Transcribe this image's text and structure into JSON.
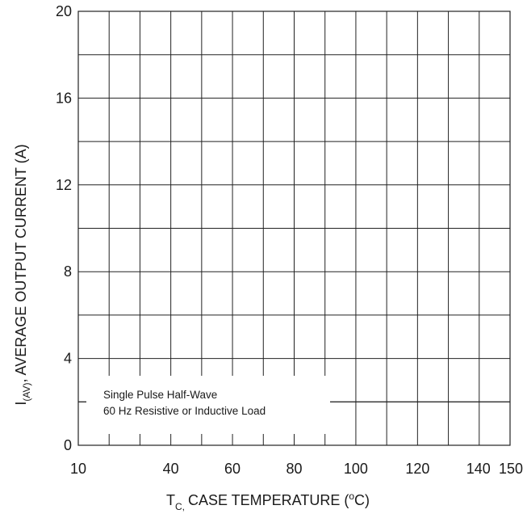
{
  "chart_data": {
    "type": "line",
    "title": "",
    "xlabel": {
      "prefix": "T",
      "subscript": "C,",
      "main": "CASE TEMPERATURE (",
      "superscript": "o",
      "suffix": "C)"
    },
    "ylabel": {
      "prefix": "I",
      "subscript": "(AV)",
      "main": ", AVERAGE OUTPUT CURRENT (A)"
    },
    "xlim": [
      10,
      150
    ],
    "ylim": [
      0,
      20
    ],
    "x_ticks": [
      {
        "value": 10,
        "label": "10"
      },
      {
        "value": 40,
        "label": "40"
      },
      {
        "value": 60,
        "label": "60"
      },
      {
        "value": 80,
        "label": "80"
      },
      {
        "value": 100,
        "label": "100"
      },
      {
        "value": 120,
        "label": "120"
      },
      {
        "value": 140,
        "label": "140"
      },
      {
        "value": 150,
        "label": "150"
      }
    ],
    "y_ticks": [
      {
        "value": 0,
        "label": "0"
      },
      {
        "value": 4,
        "label": "4"
      },
      {
        "value": 8,
        "label": "8"
      },
      {
        "value": 12,
        "label": "12"
      },
      {
        "value": 16,
        "label": "16"
      },
      {
        "value": 20,
        "label": "20"
      }
    ],
    "x_grid": [
      10,
      20,
      30,
      40,
      50,
      60,
      70,
      80,
      90,
      100,
      110,
      120,
      130,
      140,
      150
    ],
    "y_grid": [
      0,
      2,
      4,
      6,
      8,
      10,
      12,
      14,
      16,
      18,
      20
    ],
    "grid": true,
    "series": [
      {
        "x": [
          10,
          150
        ],
        "y": [
          2,
          2
        ]
      }
    ],
    "legend": {
      "lines": [
        "Single Pulse Half-Wave",
        "60 Hz Resistive or Inductive Load"
      ],
      "placement": "bottom-left"
    },
    "colors": {
      "line": "#222222",
      "background": "#ffffff",
      "text": "#1a1a1a"
    }
  }
}
